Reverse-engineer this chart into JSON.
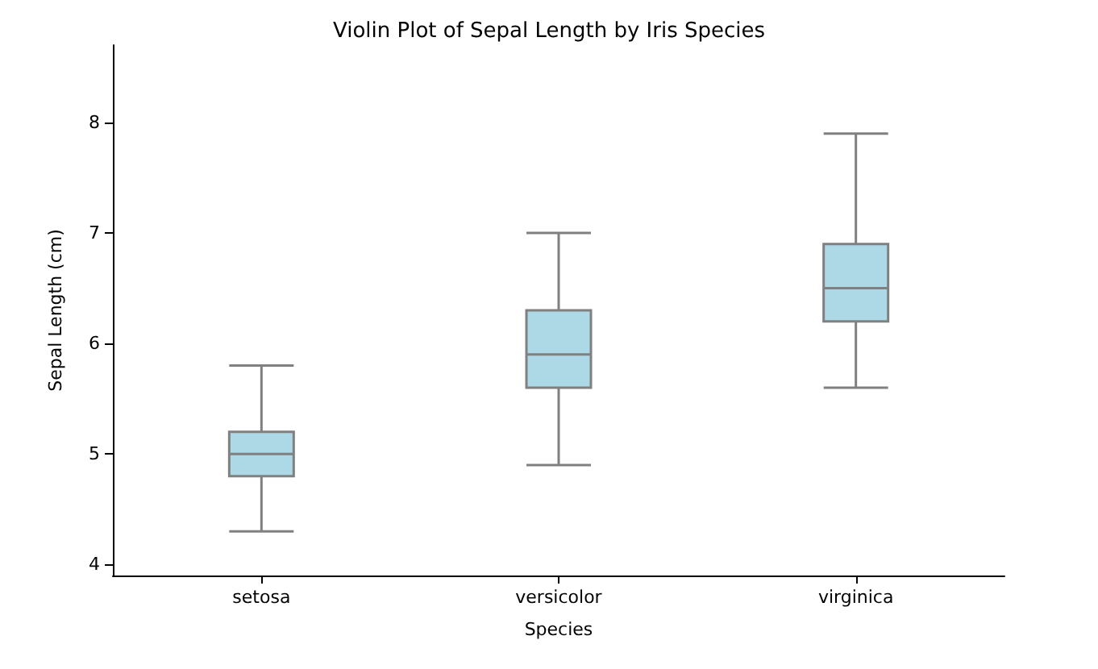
{
  "chart_data": {
    "type": "box",
    "title": "Violin Plot of Sepal Length by Iris Species",
    "xlabel": "Species",
    "ylabel": "Sepal Length (cm)",
    "categories": [
      "setosa",
      "versicolor",
      "virginica"
    ],
    "ylim": [
      3.9,
      8.7
    ],
    "yticks": [
      4,
      5,
      6,
      7,
      8
    ],
    "grid": false,
    "series": [
      {
        "color": "#add8e6",
        "boxes": [
          {
            "low": 4.3,
            "q1": 4.8,
            "median": 5.0,
            "q3": 5.2,
            "high": 5.8
          },
          {
            "low": 4.9,
            "q1": 5.6,
            "median": 5.9,
            "q3": 6.3,
            "high": 7.0
          },
          {
            "low": 5.6,
            "q1": 6.2,
            "median": 6.5,
            "q3": 6.9,
            "high": 7.9
          }
        ]
      }
    ]
  }
}
